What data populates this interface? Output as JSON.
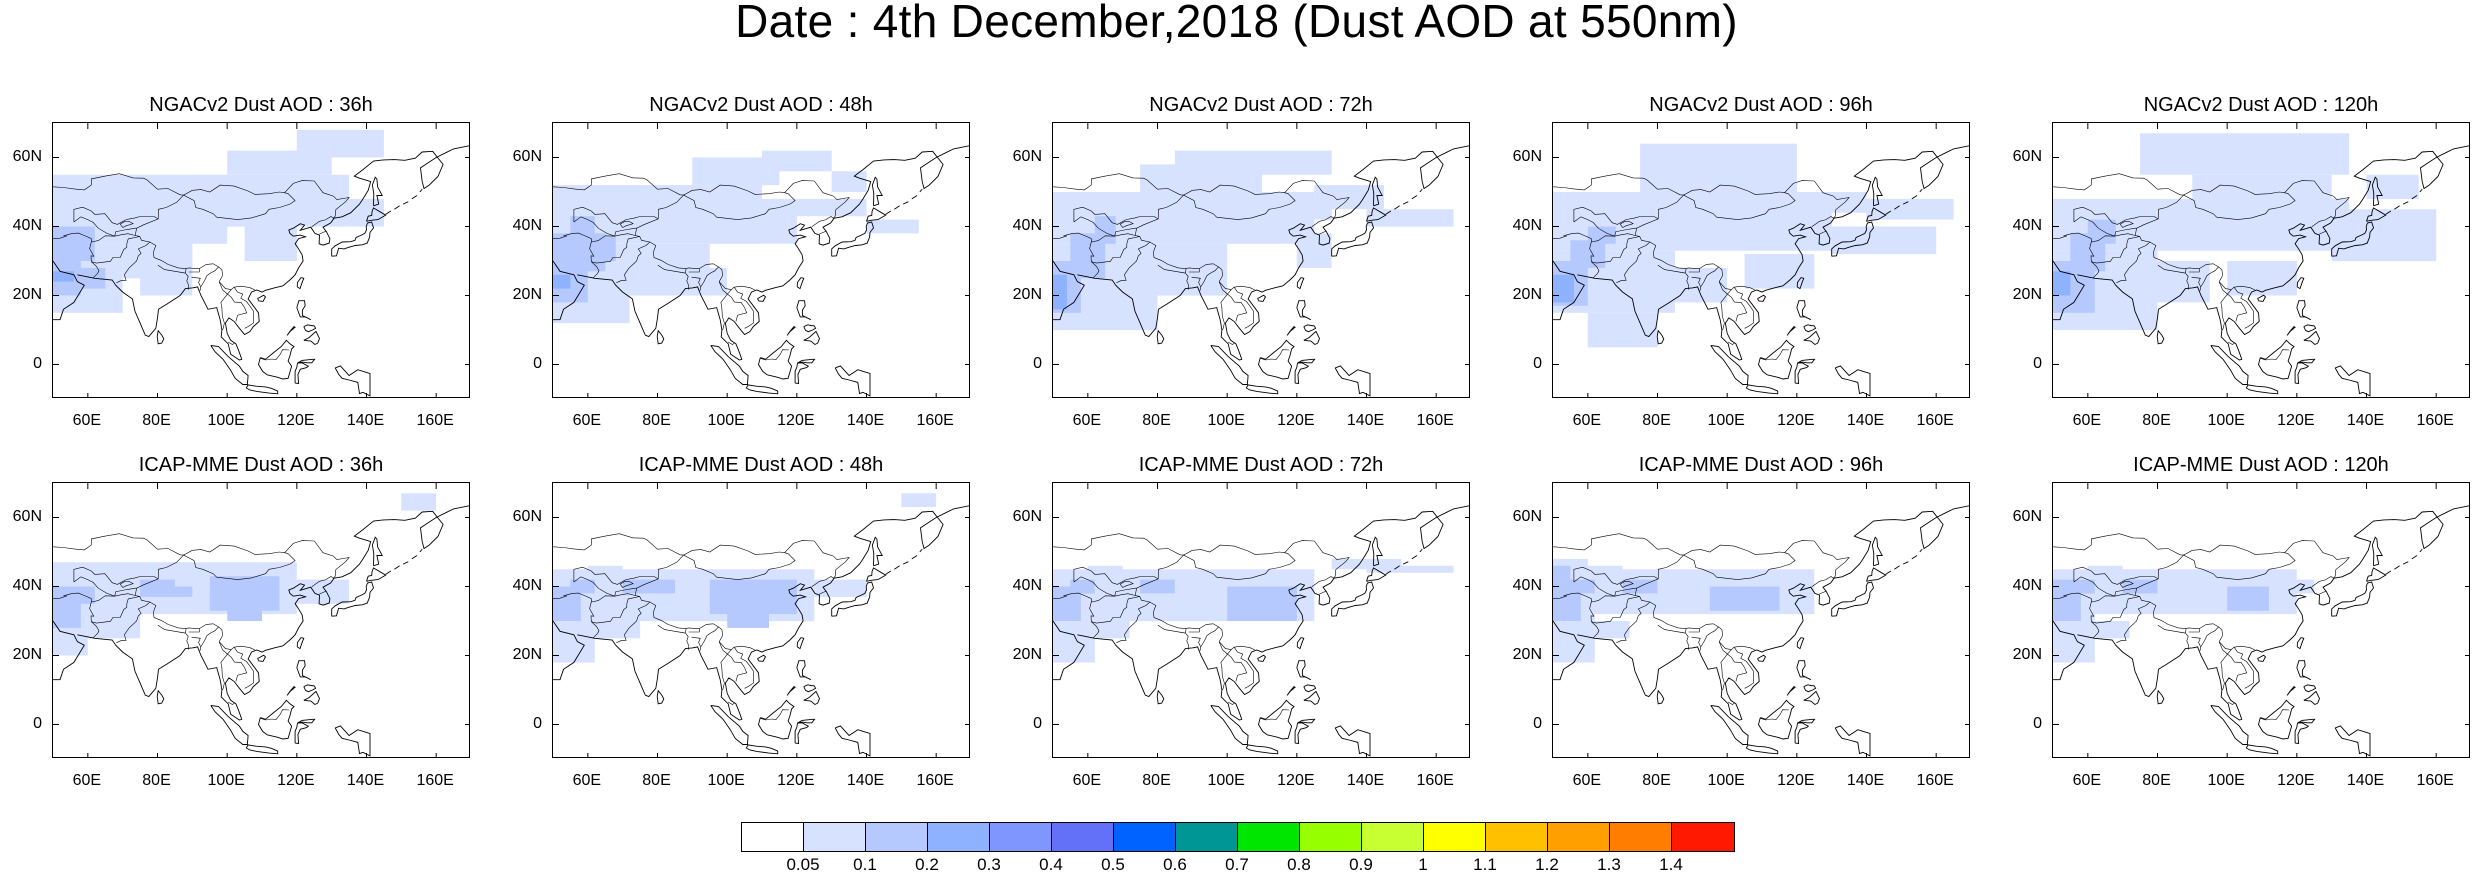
{
  "figure": {
    "title": "Date : 4th December,2018 (Dust AOD at 550nm)"
  },
  "axes": {
    "lon_range": [
      50,
      170
    ],
    "lat_range": [
      -10,
      70
    ],
    "x_ticks": [
      "60E",
      "80E",
      "100E",
      "120E",
      "140E",
      "160E"
    ],
    "x_tick_values": [
      60,
      80,
      100,
      120,
      140,
      160
    ],
    "y_ticks": [
      "60N",
      "40N",
      "20N",
      "0"
    ],
    "y_tick_values": [
      60,
      40,
      20,
      0
    ]
  },
  "panels": [
    {
      "title": "NGACv2 Dust AOD : 36h",
      "model": "NGACv2",
      "lead": "36h"
    },
    {
      "title": "NGACv2 Dust AOD : 48h",
      "model": "NGACv2",
      "lead": "48h"
    },
    {
      "title": "NGACv2 Dust AOD : 72h",
      "model": "NGACv2",
      "lead": "72h"
    },
    {
      "title": "NGACv2 Dust AOD : 96h",
      "model": "NGACv2",
      "lead": "96h"
    },
    {
      "title": "NGACv2 Dust AOD : 120h",
      "model": "NGACv2",
      "lead": "120h"
    },
    {
      "title": "ICAP-MME Dust AOD : 36h",
      "model": "ICAP-MME",
      "lead": "36h"
    },
    {
      "title": "ICAP-MME Dust AOD : 48h",
      "model": "ICAP-MME",
      "lead": "48h"
    },
    {
      "title": "ICAP-MME Dust AOD : 72h",
      "model": "ICAP-MME",
      "lead": "72h"
    },
    {
      "title": "ICAP-MME Dust AOD : 96h",
      "model": "ICAP-MME",
      "lead": "96h"
    },
    {
      "title": "ICAP-MME Dust AOD : 120h",
      "model": "ICAP-MME",
      "lead": "120h"
    }
  ],
  "colorbar": {
    "labels": [
      "0.05",
      "0.1",
      "0.2",
      "0.3",
      "0.4",
      "0.5",
      "0.6",
      "0.7",
      "0.8",
      "0.9",
      "1",
      "1.1",
      "1.2",
      "1.3",
      "1.4"
    ],
    "colors": [
      "#ffffff",
      "#d6e2ff",
      "#b5c9ff",
      "#8eb2ff",
      "#7f96ff",
      "#6370f8",
      "#0062ff",
      "#009696",
      "#00e600",
      "#96ff00",
      "#c8ff32",
      "#ffff00",
      "#ffc000",
      "#ffa000",
      "#ff7d00",
      "#ff1900"
    ]
  },
  "colors": {
    "land_outline": "#000000",
    "dust_low": "#d6e2ff",
    "dust_mid": "#b5c9ff",
    "dust_high": "#8eb2ff"
  }
}
